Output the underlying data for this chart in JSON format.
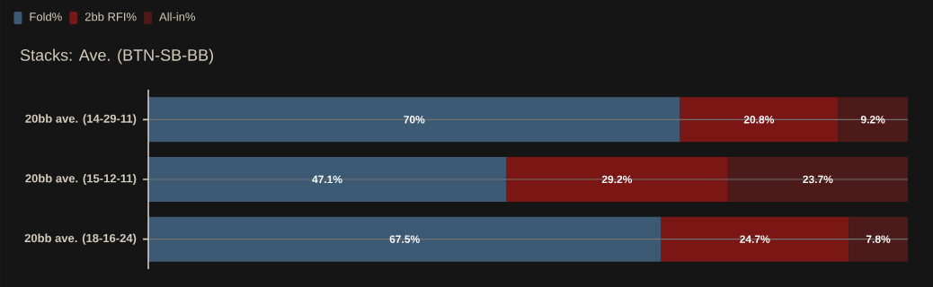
{
  "chart_data": {
    "type": "bar",
    "orientation": "horizontal",
    "stacked": true,
    "title": "Stacks: Ave. (BTN-SB-BB)",
    "categories": [
      "20bb ave. (14-29-11)",
      "20bb ave. (15-12-11)",
      "20bb ave. (18-16-24)"
    ],
    "series": [
      {
        "name": "Fold%",
        "color": "#3d5a75",
        "values": [
          70,
          47.1,
          67.5
        ],
        "value_labels": [
          "70%",
          "47.1%",
          "67.5%"
        ]
      },
      {
        "name": "2bb RFI%",
        "color": "#7a1614",
        "values": [
          20.8,
          29.2,
          24.7
        ],
        "value_labels": [
          "20.8%",
          "29.2%",
          "24.7%"
        ]
      },
      {
        "name": "All-in%",
        "color": "#4d1a1a",
        "values": [
          9.2,
          23.7,
          7.8
        ],
        "value_labels": [
          "9.2%",
          "23.7%",
          "7.8%"
        ]
      }
    ],
    "xlim": [
      0,
      100
    ],
    "tick_labels": "y",
    "grid": "y",
    "legend": "top left"
  }
}
